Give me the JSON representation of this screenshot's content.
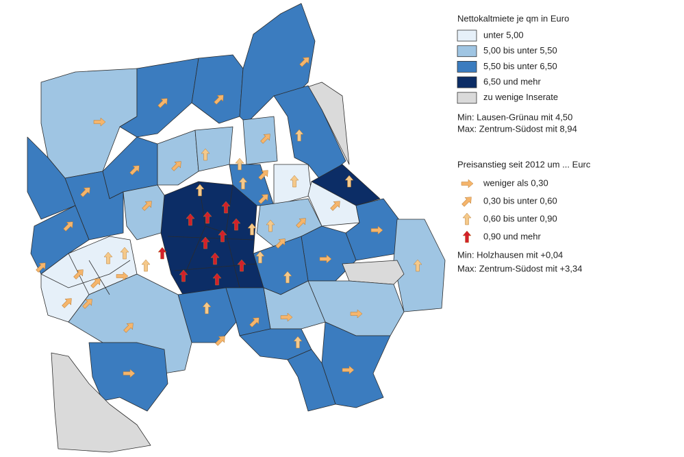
{
  "legend_rent": {
    "title": "Nettokaltmiete je qm in Euro",
    "items": [
      {
        "label": "unter 5,00",
        "color": "#e6f0f9"
      },
      {
        "label": "5,00 bis unter 5,50",
        "color": "#9fc5e3"
      },
      {
        "label": "5,50 bis unter 6,50",
        "color": "#3b7cbf"
      },
      {
        "label": "6,50 und mehr",
        "color": "#0c2d66"
      },
      {
        "label": "zu wenige Inserate",
        "color": "#dadada"
      }
    ],
    "min": "Min: Lausen-Grünau mit 4,50",
    "max": "Max: Zentrum-Südost mit 8,94"
  },
  "legend_increase": {
    "title": "Preisanstieg seit 2012 um ... Eurc",
    "items": [
      {
        "label": "weniger als 0,30",
        "color": "#f5b56c"
      },
      {
        "label": "0,30 bis unter 0,60",
        "color": "#f5b56c"
      },
      {
        "label": "0,60 bis unter 0,90",
        "color": "#f5c98a"
      },
      {
        "label": "0,90 und mehr",
        "color": "#d3202a"
      }
    ],
    "min": "Min: Holzhausen mit +0,04",
    "max": "Max: Zentrum-Südost mit +3,34"
  }
}
